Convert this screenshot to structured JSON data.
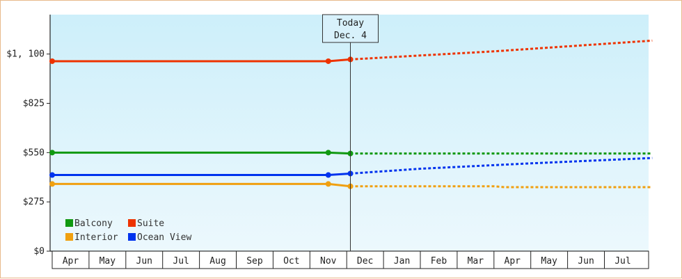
{
  "chart_data": {
    "type": "line",
    "y_ticks": [
      "$0",
      "$275",
      "$550",
      "$825",
      "$1, 100"
    ],
    "ylim": [
      0,
      1320
    ],
    "months": [
      "Apr",
      "May",
      "Jun",
      "Jul",
      "Aug",
      "Sep",
      "Oct",
      "Nov",
      "Dec",
      "Jan",
      "Feb",
      "Mar",
      "Apr",
      "May",
      "Jun",
      "Jul"
    ],
    "today_label": [
      "Today",
      "Dec. 4"
    ],
    "series": [
      {
        "name": "Suite",
        "color": "#ee3300",
        "history": [
          [
            0,
            1060
          ],
          [
            7.5,
            1060
          ],
          [
            8.1,
            1070
          ]
        ],
        "forecast": [
          [
            8.1,
            1070
          ],
          [
            12,
            1115
          ],
          [
            16.3,
            1175
          ]
        ]
      },
      {
        "name": "Balcony",
        "color": "#119911",
        "history": [
          [
            0,
            550
          ],
          [
            7.5,
            550
          ],
          [
            8.1,
            545
          ]
        ],
        "forecast": [
          [
            8.1,
            545
          ],
          [
            16.3,
            545
          ]
        ]
      },
      {
        "name": "Ocean View",
        "color": "#0033ee",
        "history": [
          [
            0,
            425
          ],
          [
            7.5,
            425
          ],
          [
            8.1,
            433
          ]
        ],
        "forecast": [
          [
            8.1,
            433
          ],
          [
            10,
            460
          ],
          [
            13,
            490
          ],
          [
            16.3,
            520
          ]
        ]
      },
      {
        "name": "Interior",
        "color": "#f0a010",
        "history": [
          [
            0,
            375
          ],
          [
            7.5,
            375
          ],
          [
            8.1,
            362
          ]
        ],
        "forecast": [
          [
            8.1,
            362
          ],
          [
            12,
            362
          ],
          [
            12.3,
            357
          ],
          [
            16.3,
            357
          ]
        ]
      }
    ],
    "legend": [
      {
        "name": "Balcony",
        "color": "#119911"
      },
      {
        "name": "Suite",
        "color": "#ee3300"
      },
      {
        "name": "Interior",
        "color": "#f0a010"
      },
      {
        "name": "Ocean View",
        "color": "#0033ee"
      }
    ]
  }
}
